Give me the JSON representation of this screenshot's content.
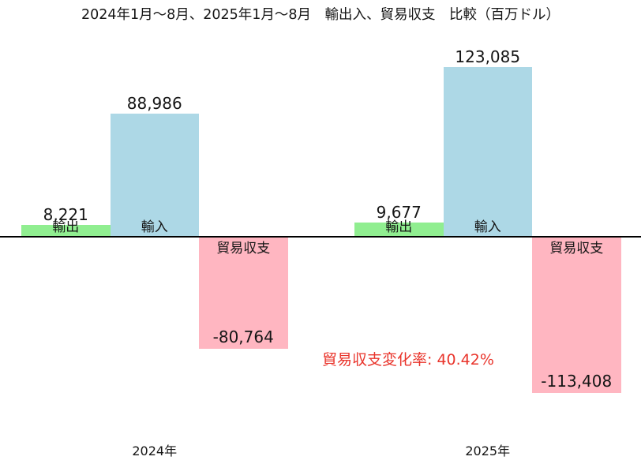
{
  "chart_data": {
    "type": "bar",
    "title": "2024年1月〜8月、2025年1月〜8月　輸出入、貿易収支　比較（百万ドル）",
    "unit": "百万ドル",
    "grid": false,
    "legend_position": "none",
    "y_axis_visible": false,
    "ylim": [
      -120000,
      135000
    ],
    "axis_color": "#000000",
    "background": "#ffffff",
    "groups": [
      {
        "year": "2024年",
        "bars": [
          {
            "key": "export",
            "label": "輸出",
            "value": 8221,
            "value_label": "8,221",
            "color": "#90ee90"
          },
          {
            "key": "import",
            "label": "輸入",
            "value": 88986,
            "value_label": "88,986",
            "color": "#add8e6"
          },
          {
            "key": "balance",
            "label": "貿易収支",
            "value": -80764,
            "value_label": "-80,764",
            "color": "#ffb6c1"
          }
        ]
      },
      {
        "year": "2025年",
        "bars": [
          {
            "key": "export",
            "label": "輸出",
            "value": 9677,
            "value_label": "9,677",
            "color": "#90ee90"
          },
          {
            "key": "import",
            "label": "輸入",
            "value": 123085,
            "value_label": "123,085",
            "color": "#add8e6"
          },
          {
            "key": "balance",
            "label": "貿易収支",
            "value": -113408,
            "value_label": "-113,408",
            "color": "#ffb6c1"
          }
        ]
      }
    ],
    "annotation": {
      "text": "貿易収支変化率: 40.42%",
      "color": "#e9342b"
    }
  }
}
